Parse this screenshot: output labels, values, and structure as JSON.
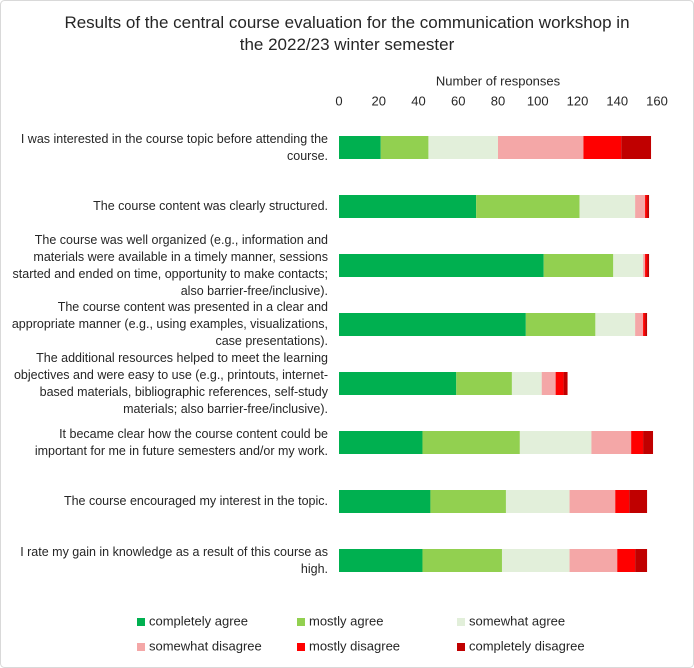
{
  "chart_data": {
    "type": "stacked-bar-horizontal",
    "title": "Results of the central course evaluation for the communication workshop in the 2022/23 winter semester",
    "x_axis_label": "Number of responses",
    "xlim": [
      0,
      160
    ],
    "xticks": [
      0,
      20,
      40,
      60,
      80,
      100,
      120,
      140,
      160
    ],
    "grid": false,
    "legend_position": "bottom",
    "categories": [
      "I was interested in the course topic before attending the course.",
      "The course content was clearly structured.",
      "The course was well organized (e.g., information and materials were available in a timely manner, sessions started and ended on time, opportunity to make contacts; also barrier-free/inclusive).",
      "The course content was presented in a clear and appropriate manner (e.g., using examples, visualizations, case presentations).",
      "The additional resources helped to meet the learning objectives and were easy to use (e.g., printouts, internet-based materials, bibliographic references, self-study materials; also barrier-free/inclusive).",
      "It became clear how the course content could be important for me in future semesters and/or my work.",
      "The course encouraged my interest in the topic.",
      "I rate my gain in knowledge as a result of this course as high."
    ],
    "series": [
      {
        "name": "completely agree",
        "color": "#00b050",
        "values": [
          21,
          69,
          103,
          94,
          59,
          42,
          46,
          42
        ]
      },
      {
        "name": "mostly agree",
        "color": "#92d050",
        "values": [
          24,
          52,
          35,
          35,
          28,
          49,
          38,
          40
        ]
      },
      {
        "name": "somewhat agree",
        "color": "#e2efda",
        "values": [
          35,
          28,
          15,
          20,
          15,
          36,
          32,
          34
        ]
      },
      {
        "name": "somewhat disagree",
        "color": "#f4a7a7",
        "values": [
          43,
          5,
          1,
          4,
          7,
          20,
          23,
          24
        ]
      },
      {
        "name": "mostly disagree",
        "color": "#ff0000",
        "values": [
          19,
          1,
          1,
          1,
          4,
          6,
          7,
          9
        ]
      },
      {
        "name": "completely disagree",
        "color": "#c00000",
        "values": [
          15,
          1,
          1,
          1,
          2,
          5,
          9,
          6
        ]
      }
    ]
  }
}
